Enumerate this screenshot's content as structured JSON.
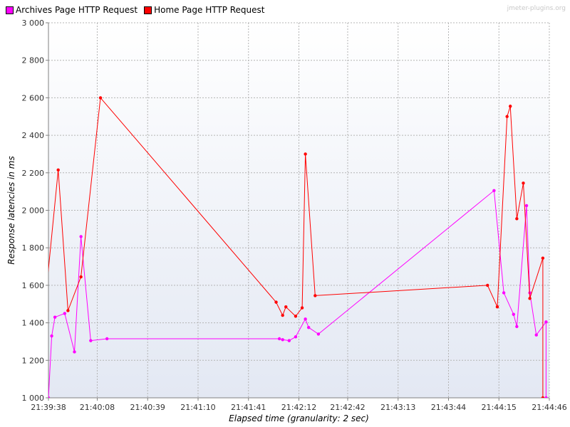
{
  "watermark": "jmeter-plugins.org",
  "chart_data": {
    "type": "line",
    "title": "",
    "xlabel": "Elapsed time (granularity: 2 sec)",
    "ylabel": "Response latencies in ms",
    "ylim": [
      1000,
      3000
    ],
    "yticks": [
      1000,
      1200,
      1400,
      1600,
      1800,
      2000,
      2200,
      2400,
      2600,
      2800,
      3000
    ],
    "ytick_labels": [
      "1 000",
      "1 200",
      "1 400",
      "1 600",
      "1 800",
      "2 000",
      "2 200",
      "2 400",
      "2 600",
      "2 800",
      "3 000"
    ],
    "xlim": [
      "21:39:38",
      "21:44:46"
    ],
    "xticks": [
      "21:39:38",
      "21:40:08",
      "21:40:39",
      "21:41:10",
      "21:41:41",
      "21:42:12",
      "21:42:42",
      "21:43:13",
      "21:43:44",
      "21:44:15",
      "21:44:46"
    ],
    "grid": true,
    "legend_position": "top-left",
    "series": [
      {
        "name": "Archives Page HTTP Request",
        "color": "#ff00ff",
        "points": [
          [
            "21:39:38",
            1000
          ],
          [
            "21:39:40",
            1330
          ],
          [
            "21:39:42",
            1430
          ],
          [
            "21:39:48",
            1450
          ],
          [
            "21:39:54",
            1245
          ],
          [
            "21:39:58",
            1860
          ],
          [
            "21:40:04",
            1305
          ],
          [
            "21:40:14",
            1315
          ],
          [
            "21:42:00",
            1315
          ],
          [
            "21:42:02",
            1310
          ],
          [
            "21:42:06",
            1305
          ],
          [
            "21:42:10",
            1325
          ],
          [
            "21:42:16",
            1420
          ],
          [
            "21:42:18",
            1375
          ],
          [
            "21:42:24",
            1340
          ],
          [
            "21:44:12",
            2105
          ],
          [
            "21:44:18",
            1560
          ],
          [
            "21:44:24",
            1445
          ],
          [
            "21:44:26",
            1380
          ],
          [
            "21:44:32",
            2025
          ],
          [
            "21:44:34",
            1560
          ],
          [
            "21:44:38",
            1335
          ],
          [
            "21:44:44",
            1405
          ],
          [
            "21:44:44",
            1000
          ]
        ]
      },
      {
        "name": "Home Page HTTP Request",
        "color": "#ff0000",
        "points": [
          [
            "21:39:36",
            1510
          ],
          [
            "21:39:44",
            2215
          ],
          [
            "21:39:50",
            1465
          ],
          [
            "21:39:58",
            1645
          ],
          [
            "21:40:10",
            2600
          ],
          [
            "21:41:58",
            1510
          ],
          [
            "21:42:02",
            1440
          ],
          [
            "21:42:04",
            1485
          ],
          [
            "21:42:10",
            1435
          ],
          [
            "21:42:14",
            1480
          ],
          [
            "21:42:16",
            2300
          ],
          [
            "21:42:22",
            1545
          ],
          [
            "21:44:08",
            1600
          ],
          [
            "21:44:14",
            1485
          ],
          [
            "21:44:20",
            2500
          ],
          [
            "21:44:22",
            2555
          ],
          [
            "21:44:26",
            1955
          ],
          [
            "21:44:30",
            2145
          ],
          [
            "21:44:34",
            1530
          ],
          [
            "21:44:42",
            1745
          ],
          [
            "21:44:42",
            1000
          ]
        ]
      }
    ]
  }
}
